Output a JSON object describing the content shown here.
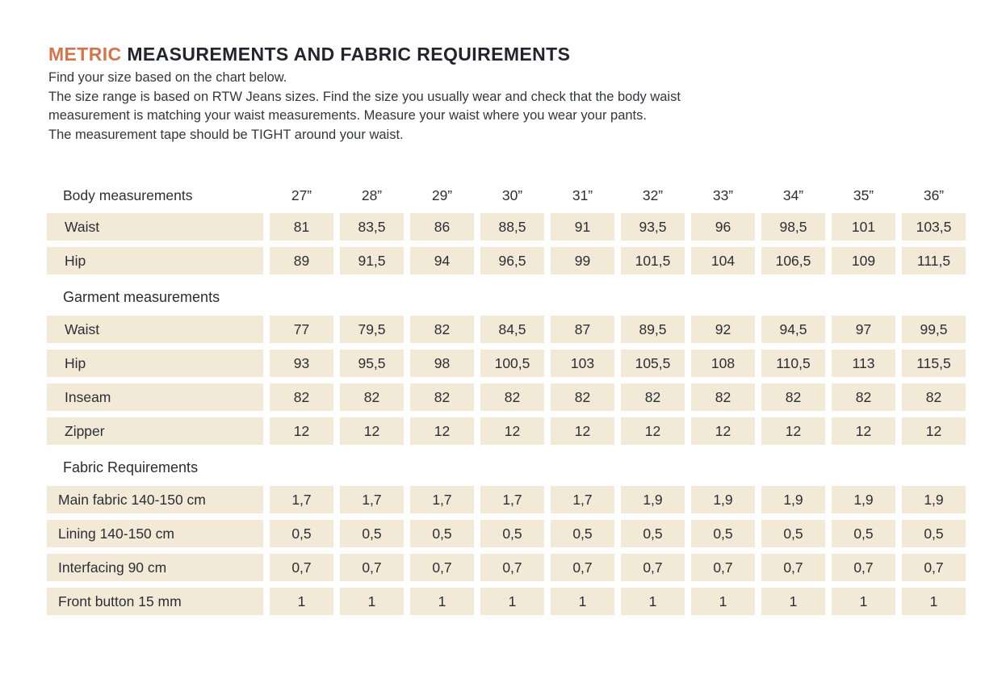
{
  "colors": {
    "accent": "#d0764e",
    "cell_bg": "#f2e9d7",
    "text": "#282b33"
  },
  "header": {
    "title_accent": "METRIC",
    "title_rest": "MEASUREMENTS AND FABRIC REQUIREMENTS",
    "intro_lines": [
      "Find your size based on the chart below.",
      "The size range is based on RTW Jeans sizes. Find the size you usually wear and check that the body waist",
      "measurement is matching your waist measurements. Measure your waist where you wear your pants.",
      "The measurement tape should be TIGHT around your waist."
    ]
  },
  "chart_data": {
    "type": "table",
    "title": "Metric measurements and fabric requirements",
    "sizes": [
      "27”",
      "28”",
      "29”",
      "30”",
      "31”",
      "32”",
      "33”",
      "34”",
      "35”",
      "36”"
    ],
    "sections": [
      {
        "title": "Body measurements",
        "inline_header": true,
        "compact_labels": false,
        "rows": [
          {
            "label": "Waist",
            "values": [
              "81",
              "83,5",
              "86",
              "88,5",
              "91",
              "93,5",
              "96",
              "98,5",
              "101",
              "103,5"
            ]
          },
          {
            "label": "Hip",
            "values": [
              "89",
              "91,5",
              "94",
              "96,5",
              "99",
              "101,5",
              "104",
              "106,5",
              "109",
              "111,5"
            ]
          }
        ]
      },
      {
        "title": "Garment measurements",
        "inline_header": false,
        "compact_labels": false,
        "rows": [
          {
            "label": "Waist",
            "values": [
              "77",
              "79,5",
              "82",
              "84,5",
              "87",
              "89,5",
              "92",
              "94,5",
              "97",
              "99,5"
            ]
          },
          {
            "label": "Hip",
            "values": [
              "93",
              "95,5",
              "98",
              "100,5",
              "103",
              "105,5",
              "108",
              "110,5",
              "113",
              "115,5"
            ]
          },
          {
            "label": "Inseam",
            "values": [
              "82",
              "82",
              "82",
              "82",
              "82",
              "82",
              "82",
              "82",
              "82",
              "82"
            ]
          },
          {
            "label": "Zipper",
            "values": [
              "12",
              "12",
              "12",
              "12",
              "12",
              "12",
              "12",
              "12",
              "12",
              "12"
            ]
          }
        ]
      },
      {
        "title": "Fabric Requirements",
        "inline_header": false,
        "compact_labels": true,
        "rows": [
          {
            "label": "Main fabric 140-150 cm",
            "values": [
              "1,7",
              "1,7",
              "1,7",
              "1,7",
              "1,7",
              "1,9",
              "1,9",
              "1,9",
              "1,9",
              "1,9"
            ]
          },
          {
            "label": "Lining 140-150 cm",
            "values": [
              "0,5",
              "0,5",
              "0,5",
              "0,5",
              "0,5",
              "0,5",
              "0,5",
              "0,5",
              "0,5",
              "0,5"
            ]
          },
          {
            "label": "Interfacing 90 cm",
            "values": [
              "0,7",
              "0,7",
              "0,7",
              "0,7",
              "0,7",
              "0,7",
              "0,7",
              "0,7",
              "0,7",
              "0,7"
            ]
          },
          {
            "label": "Front button 15 mm",
            "values": [
              "1",
              "1",
              "1",
              "1",
              "1",
              "1",
              "1",
              "1",
              "1",
              "1"
            ]
          }
        ]
      }
    ]
  }
}
